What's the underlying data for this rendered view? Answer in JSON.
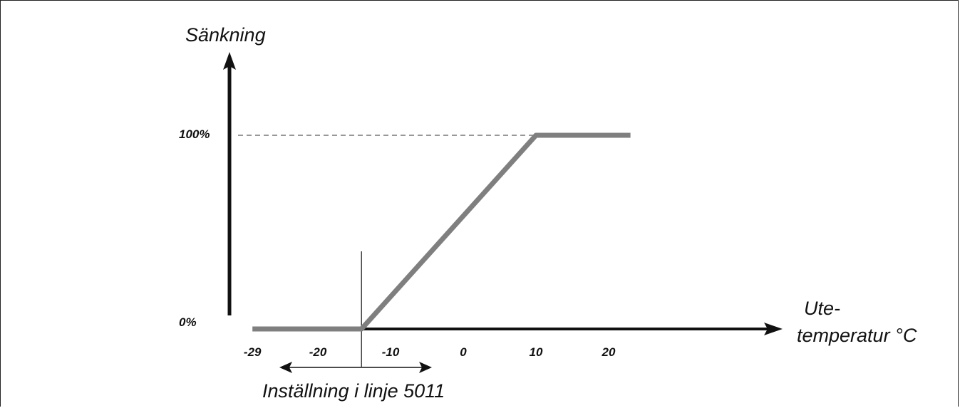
{
  "chart_data": {
    "type": "line",
    "title": "",
    "ylabel": "Sänkning",
    "xlabel_line1": "Ute-",
    "xlabel_line2": "temperatur °C",
    "x_ticks": [
      "-29",
      "-20",
      "-10",
      "0",
      "10",
      "20"
    ],
    "y_ticks": [
      "0%",
      "100%"
    ],
    "xlim": [
      -29,
      30
    ],
    "ylim": [
      0,
      100
    ],
    "grid": false,
    "series": [
      {
        "color": "#7f7f7f",
        "points": [
          {
            "x": -29,
            "y": 0
          },
          {
            "x": -14,
            "y": 0
          },
          {
            "x": 10,
            "y": 100
          },
          {
            "x": 23,
            "y": 100
          }
        ]
      }
    ],
    "reference_line": {
      "y": 100,
      "style": "dashed"
    },
    "setting_marker": {
      "x": -14
    },
    "annotation": "Inställning i linje 5011"
  }
}
